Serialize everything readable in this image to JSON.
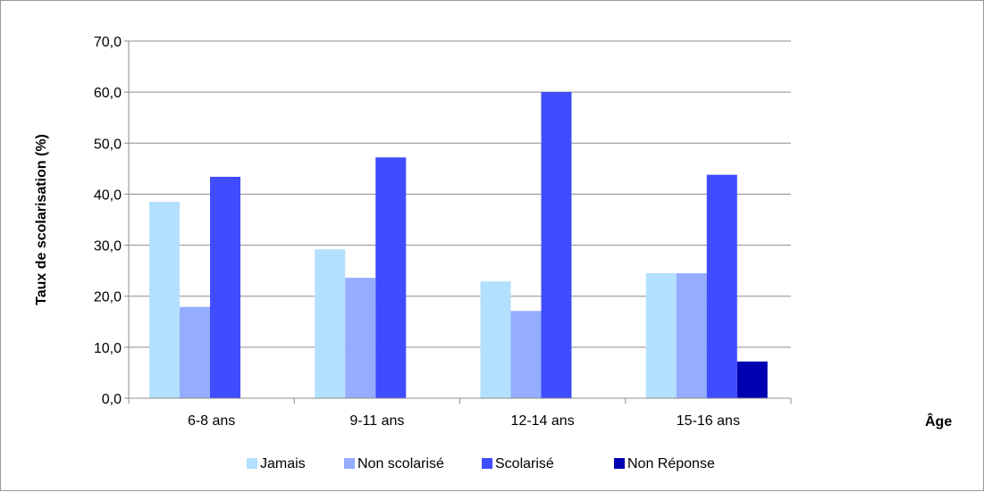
{
  "chart_data": {
    "type": "bar",
    "categories": [
      "6-8 ans",
      "9-11 ans",
      "12-14 ans",
      "15-16 ans"
    ],
    "series": [
      {
        "name": "Jamais",
        "values": [
          38.5,
          29.2,
          22.9,
          24.5
        ],
        "color": "#b3e0ff"
      },
      {
        "name": "Non scolarisé",
        "values": [
          17.9,
          23.6,
          17.1,
          24.5
        ],
        "color": "#94adff"
      },
      {
        "name": "Scolarisé",
        "values": [
          43.4,
          47.2,
          60.0,
          43.8
        ],
        "color": "#3f4dff"
      },
      {
        "name": "Non Réponse",
        "values": [
          0,
          0,
          0,
          7.2
        ],
        "color": "#0000b3"
      }
    ],
    "ylabel": "Taux de scolarisation (%)",
    "xlabel": "Âge",
    "ylim": [
      0,
      70
    ],
    "yticks": [
      "0,0",
      "10,0",
      "20,0",
      "30,0",
      "40,0",
      "50,0",
      "60,0",
      "70,0"
    ],
    "grid": true,
    "legend_position": "bottom"
  }
}
